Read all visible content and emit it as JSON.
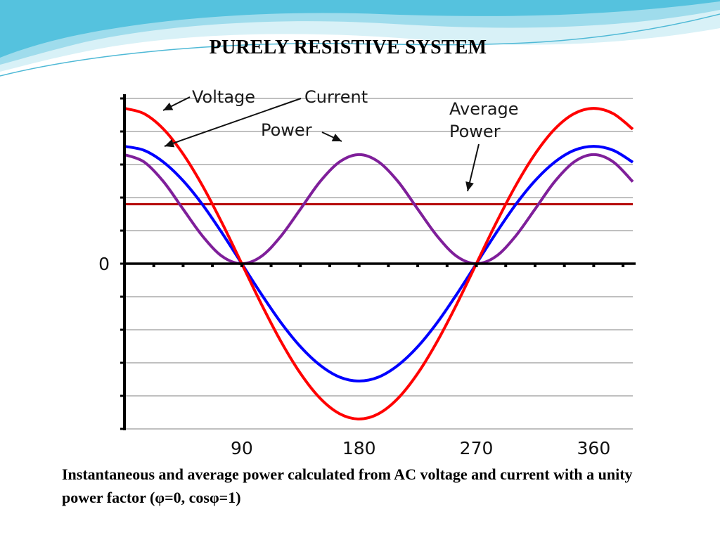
{
  "slide": {
    "title": "PURELY RESISTIVE SYSTEM",
    "caption": "Instantaneous and average power calculated from AC voltage and current with a unity power factor (φ=0, cosφ=1)"
  },
  "chart_data": {
    "type": "line",
    "x": [
      0,
      15,
      30,
      45,
      60,
      75,
      90,
      105,
      120,
      135,
      150,
      165,
      180,
      195,
      210,
      225,
      240,
      255,
      270,
      285,
      300,
      315,
      330,
      345,
      360,
      375,
      390
    ],
    "xlim": [
      0,
      390
    ],
    "ylim": [
      -5,
      5
    ],
    "x_ticks": [
      "90",
      "180",
      "270",
      "360"
    ],
    "x_tick_values": [
      90,
      180,
      270,
      360
    ],
    "y_tick_labels": [
      "0"
    ],
    "y_tick_values": [
      0
    ],
    "grid": true,
    "series": [
      {
        "name": "Voltage",
        "color": "#ff0000",
        "values": [
          4.7,
          4.54,
          4.07,
          3.32,
          2.35,
          1.22,
          0,
          -1.22,
          -2.35,
          -3.32,
          -4.07,
          -4.54,
          -4.7,
          -4.54,
          -4.07,
          -3.32,
          -2.35,
          -1.22,
          0,
          1.22,
          2.35,
          3.32,
          4.07,
          4.54,
          4.7,
          4.54,
          4.07
        ]
      },
      {
        "name": "Current",
        "color": "#0000ff",
        "values": [
          3.55,
          3.43,
          3.07,
          2.51,
          1.78,
          0.92,
          0,
          -0.92,
          -1.78,
          -2.51,
          -3.07,
          -3.43,
          -3.55,
          -3.43,
          -3.07,
          -2.51,
          -1.78,
          -0.92,
          0,
          0.92,
          1.78,
          2.51,
          3.07,
          3.43,
          3.55,
          3.43,
          3.07
        ]
      },
      {
        "name": "Power",
        "color": "#7f1f9a",
        "values": [
          3.3,
          3.08,
          2.48,
          1.65,
          0.83,
          0.22,
          0,
          0.22,
          0.83,
          1.65,
          2.48,
          3.08,
          3.3,
          3.08,
          2.48,
          1.65,
          0.83,
          0.22,
          0,
          0.22,
          0.83,
          1.65,
          2.48,
          3.08,
          3.3,
          3.08,
          2.48
        ]
      },
      {
        "name": "Average Power",
        "color": "#b30000",
        "values": [
          1.8,
          1.8,
          1.8,
          1.8,
          1.8,
          1.8,
          1.8,
          1.8,
          1.8,
          1.8,
          1.8,
          1.8,
          1.8,
          1.8,
          1.8,
          1.8,
          1.8,
          1.8,
          1.8,
          1.8,
          1.8,
          1.8,
          1.8,
          1.8,
          1.8,
          1.8,
          1.8
        ]
      }
    ],
    "annotations": [
      {
        "name": "voltage",
        "text": "Voltage"
      },
      {
        "name": "current",
        "text": "Current"
      },
      {
        "name": "power",
        "text": "Power"
      },
      {
        "name": "average",
        "text": "Average"
      },
      {
        "name": "power2",
        "text": "Power"
      }
    ]
  },
  "theme": {
    "wave_light": "#bfe6f0",
    "wave_mid": "#7fd0e4",
    "wave_dark": "#3cb6d6"
  }
}
